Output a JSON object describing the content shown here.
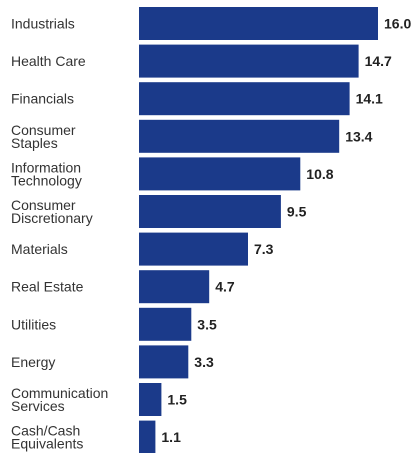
{
  "chart_data": {
    "type": "bar",
    "orientation": "horizontal",
    "categories": [
      [
        "Industrials"
      ],
      [
        "Health Care"
      ],
      [
        "Financials"
      ],
      [
        "Consumer",
        "Staples"
      ],
      [
        "Information",
        "Technology"
      ],
      [
        "Consumer",
        "Discretionary"
      ],
      [
        "Materials"
      ],
      [
        "Real Estate"
      ],
      [
        "Utilities"
      ],
      [
        "Energy"
      ],
      [
        "Communication",
        "Services"
      ],
      [
        "Cash/Cash",
        "Equivalents"
      ]
    ],
    "values": [
      16.0,
      14.7,
      14.1,
      13.4,
      10.8,
      9.5,
      7.3,
      4.7,
      3.5,
      3.3,
      1.5,
      1.1
    ],
    "value_labels": [
      "16.0",
      "14.7",
      "14.1",
      "13.4",
      "10.8",
      "9.5",
      "7.3",
      "4.7",
      "3.5",
      "3.3",
      "1.5",
      "1.1"
    ],
    "xlim": [
      0,
      16.0
    ],
    "grid": false,
    "legend": "none",
    "bar_color": "#1B3A8A",
    "label_color": "#333333",
    "value_color": "#222222"
  }
}
